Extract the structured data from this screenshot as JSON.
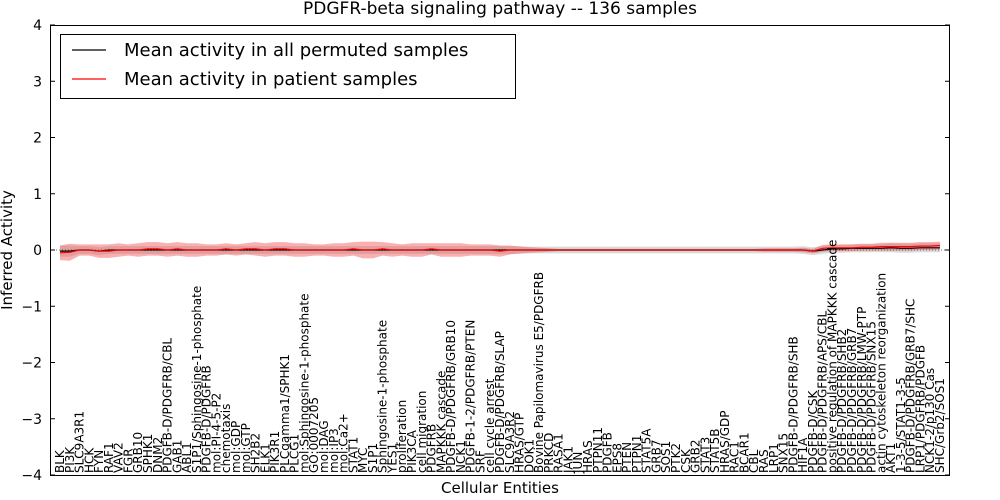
{
  "chart_data": {
    "type": "line",
    "title": "PDGFR-beta signaling pathway -- 136 samples",
    "xlabel": "Cellular Entities",
    "ylabel": "Inferred Activity",
    "ylim": [
      -4,
      4
    ],
    "yticks": [
      -4,
      -3,
      -2,
      -1,
      0,
      1,
      2,
      3,
      4
    ],
    "legend_position": "top-left",
    "categories": [
      "BLK",
      "PI3K",
      "SLC9A3R1",
      "HCK",
      "FYN",
      "RAF1",
      "VAV2",
      "FGR",
      "GRB10",
      "SPHK1",
      "DNM2",
      "PDGFB-D/PDGFRB/CBL",
      "GAB1",
      "ABL1",
      "S1P1/Sphingosine-1-phosphate",
      "PDGFB-D/PDGFRB",
      "mol:PI-4-5-P2",
      "chemotaxis",
      "mol:GDP",
      "mol:GTP",
      "SH2B2",
      "ELK1",
      "PIK3R1",
      "PLCgamma1/SPHK1",
      "PLCG1",
      "mol:Sphingosine-1-phosphate",
      "GO:0007205",
      "mol:DAG",
      "mol:IP3",
      "mol:Ca2+",
      "STAT1",
      "MYC",
      "S1P1",
      "Sphingosine-1-phosphate",
      "YES1",
      "proliferation",
      "PIK3CA",
      "cell migration",
      "PDGFRB",
      "MAPKKK cascade",
      "PDGFB-D/PDGFRB/GRB10",
      "NCK1",
      "PDGFB-1-2/PDGFRB/PTEN",
      "SRF",
      "cell cycle arrest",
      "PDGFB-D/PDGFRB/SLAP",
      "SLC9A3R2",
      "HRAS/GTP",
      "DOK1",
      "Bovine Papilomavirus E5/PDGFRB",
      "PRKCD",
      "RASA1",
      "JAK1",
      "JUN",
      "HRAS",
      "PTPN11",
      "PDGFB",
      "EPS8",
      "PTEN",
      "PTPN1",
      "STAT5A",
      "GRB7",
      "SOS1",
      "PTK2",
      "CSK",
      "GRB2",
      "STAT3",
      "STAT5B",
      "HRAS/GDP",
      "RAC1",
      "BCAR1",
      "CBL",
      "RAS",
      "LRP1",
      "SNX15",
      "PDGFB-D/PDGFRB/SHB",
      "HIF1A",
      "PDGFB-D/CSK",
      "PDGFB-D/PDGFRB/APS/CBL",
      "positive regulation of MAPKKK cascade",
      "PDGFB-D/PDGFRB/SHB2",
      "PDGFB-D/PDGFRB/GRB7",
      "PDGFB-D/PDGFRB/LMW-PTP",
      "PDGFB-D/PDGFRB/SNX15",
      "actin cytoskeleton reorganization",
      "AKT1",
      "1-3-5/STAT1-3-5",
      "PDGFB-D/PDGFRB/GRB7/SHC",
      "LRP1/PDGFRB/PDGFB",
      "NCK1-2/p130 Cas",
      "SHC/Grb2/SOS1"
    ],
    "series": [
      {
        "name": "Mean activity in all permuted samples",
        "color": "#000000",
        "values": [
          -0.02,
          -0.02,
          0.0,
          0.0,
          -0.02,
          0.0,
          0.0,
          0.0,
          0.0,
          0.0,
          0.0,
          0.0,
          0.0,
          0.0,
          0.0,
          0.0,
          0.0,
          0.0,
          0.0,
          0.0,
          0.0,
          0.0,
          0.0,
          0.0,
          0.0,
          0.0,
          0.0,
          0.0,
          0.0,
          0.0,
          0.0,
          0.0,
          0.0,
          0.0,
          0.0,
          0.0,
          0.0,
          0.0,
          0.0,
          0.0,
          0.0,
          0.0,
          0.0,
          0.0,
          0.0,
          0.0,
          0.0,
          0.0,
          0.0,
          0.0,
          0.0,
          0.0,
          0.0,
          0.0,
          0.0,
          0.0,
          0.0,
          0.0,
          0.0,
          0.0,
          0.0,
          0.0,
          0.0,
          0.0,
          0.0,
          0.0,
          0.0,
          0.0,
          0.0,
          0.0,
          0.0,
          0.0,
          0.0,
          0.0,
          0.0,
          0.0,
          0.0,
          -0.02,
          0.0,
          0.02,
          0.02,
          0.03,
          0.03,
          0.03,
          0.03,
          0.04,
          0.03,
          0.03,
          0.04,
          0.04,
          0.04
        ],
        "band": [
          0.1,
          0.1,
          0.07,
          0.07,
          0.07,
          0.07,
          0.07,
          0.07,
          0.07,
          0.07,
          0.07,
          0.07,
          0.07,
          0.07,
          0.07,
          0.07,
          0.07,
          0.07,
          0.07,
          0.07,
          0.07,
          0.07,
          0.07,
          0.07,
          0.07,
          0.07,
          0.07,
          0.07,
          0.07,
          0.07,
          0.07,
          0.07,
          0.07,
          0.07,
          0.07,
          0.07,
          0.07,
          0.07,
          0.07,
          0.07,
          0.07,
          0.07,
          0.07,
          0.07,
          0.07,
          0.07,
          0.07,
          0.07,
          0.06,
          0.06,
          0.06,
          0.06,
          0.06,
          0.06,
          0.06,
          0.06,
          0.06,
          0.06,
          0.06,
          0.06,
          0.06,
          0.06,
          0.06,
          0.06,
          0.06,
          0.06,
          0.06,
          0.06,
          0.06,
          0.06,
          0.06,
          0.06,
          0.06,
          0.06,
          0.06,
          0.06,
          0.07,
          0.07,
          0.07,
          0.07,
          0.07,
          0.07,
          0.07,
          0.07,
          0.07,
          0.08,
          0.08,
          0.08,
          0.08,
          0.08,
          0.08
        ]
      },
      {
        "name": "Mean activity in patient samples",
        "color": "#ff0000",
        "values": [
          -0.05,
          -0.04,
          0.0,
          0.0,
          -0.02,
          -0.02,
          0.0,
          0.0,
          0.0,
          0.02,
          0.02,
          0.0,
          0.02,
          0.0,
          0.0,
          0.0,
          0.0,
          0.02,
          0.0,
          0.02,
          0.02,
          0.0,
          0.02,
          0.02,
          0.0,
          0.0,
          0.0,
          0.0,
          0.0,
          0.0,
          0.02,
          0.0,
          0.0,
          0.02,
          0.0,
          0.0,
          0.0,
          0.0,
          0.02,
          0.0,
          0.0,
          0.0,
          0.0,
          0.0,
          0.0,
          -0.02,
          0.0,
          0.0,
          0.0,
          0.0,
          0.0,
          0.0,
          0.0,
          0.0,
          0.0,
          0.0,
          0.0,
          0.0,
          0.0,
          0.0,
          0.0,
          0.0,
          0.0,
          0.0,
          0.0,
          0.0,
          0.0,
          0.0,
          0.0,
          0.0,
          0.0,
          0.0,
          0.0,
          0.0,
          0.0,
          0.0,
          0.0,
          -0.02,
          0.03,
          0.04,
          0.04,
          0.04,
          0.05,
          0.05,
          0.06,
          0.06,
          0.06,
          0.06,
          0.07,
          0.07,
          0.08
        ],
        "band": [
          0.13,
          0.15,
          0.1,
          0.1,
          0.12,
          0.12,
          0.12,
          0.1,
          0.12,
          0.12,
          0.12,
          0.12,
          0.12,
          0.12,
          0.12,
          0.1,
          0.1,
          0.1,
          0.1,
          0.1,
          0.12,
          0.12,
          0.12,
          0.12,
          0.12,
          0.12,
          0.1,
          0.1,
          0.12,
          0.12,
          0.12,
          0.15,
          0.15,
          0.12,
          0.12,
          0.1,
          0.12,
          0.12,
          0.1,
          0.12,
          0.12,
          0.12,
          0.1,
          0.1,
          0.1,
          0.1,
          0.08,
          0.06,
          0.05,
          0.04,
          0.03,
          0.02,
          0.02,
          0.02,
          0.02,
          0.02,
          0.02,
          0.02,
          0.02,
          0.02,
          0.02,
          0.02,
          0.02,
          0.02,
          0.02,
          0.02,
          0.02,
          0.02,
          0.02,
          0.02,
          0.02,
          0.02,
          0.03,
          0.03,
          0.03,
          0.03,
          0.04,
          0.04,
          0.06,
          0.06,
          0.06,
          0.06,
          0.06,
          0.06,
          0.07,
          0.07,
          0.07,
          0.07,
          0.07,
          0.07,
          0.07
        ]
      }
    ]
  }
}
